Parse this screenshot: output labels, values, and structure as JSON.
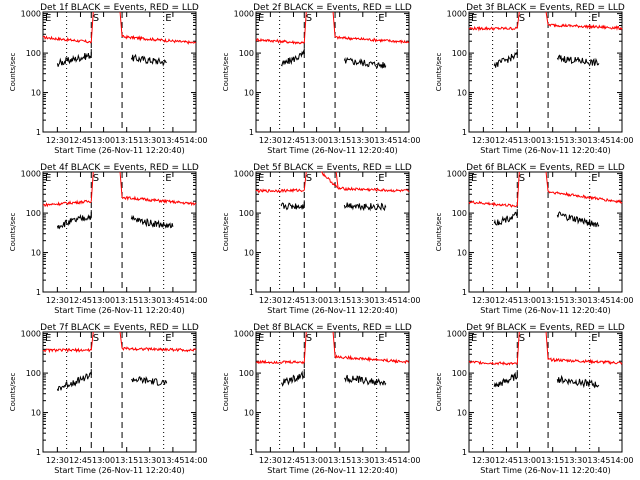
{
  "ylabel": "Counts/sec",
  "xlabel": "Start Time (26-Nov-11 12:20:40)",
  "event_markers": [
    "E",
    "S",
    "E"
  ],
  "x_tick_labels": [
    "12:30",
    "12:45",
    "13:00",
    "13:15",
    "13:30",
    "13:45",
    "14:00"
  ],
  "y_tick_labels": [
    "1",
    "10",
    "100",
    "1000"
  ],
  "colors": {
    "events": "#000000",
    "lld": "#ff0000",
    "axes": "#000000"
  },
  "chart_data": [
    {
      "type": "line",
      "title": "Det 1f BLACK = Events, RED = LLD",
      "xlim": [
        "12:20:40",
        "14:00"
      ],
      "ylim": [
        1,
        1100
      ],
      "yscale": "log",
      "series": [
        {
          "color": "#ff0000",
          "segments": [
            {
              "x": [
                "12:20:40",
                "12:52:00"
              ],
              "y": [
                250,
                190
              ]
            },
            {
              "x": [
                "13:12:00",
                "14:00"
              ],
              "y": [
                260,
                180
              ]
            }
          ]
        },
        {
          "color": "#000000",
          "segments": [
            {
              "x": [
                "12:30:00",
                "12:52:00"
              ],
              "y": [
                55,
                90
              ]
            },
            {
              "x": [
                "13:18:00",
                "13:41:00"
              ],
              "y": [
                75,
                58
              ]
            }
          ]
        }
      ]
    },
    {
      "type": "line",
      "title": "Det 2f BLACK = Events, RED = LLD",
      "xlim": [
        "12:20:40",
        "14:00"
      ],
      "ylim": [
        1,
        1100
      ],
      "yscale": "log",
      "series": [
        {
          "color": "#ff0000",
          "segments": [
            {
              "x": [
                "12:20:40",
                "12:52:00"
              ],
              "y": [
                220,
                180
              ]
            },
            {
              "x": [
                "13:12:00",
                "14:00"
              ],
              "y": [
                250,
                190
              ]
            }
          ]
        },
        {
          "color": "#000000",
          "segments": [
            {
              "x": [
                "12:37:00",
                "12:52:00"
              ],
              "y": [
                50,
                95
              ]
            },
            {
              "x": [
                "13:18:00",
                "13:45:00"
              ],
              "y": [
                65,
                48
              ]
            }
          ]
        }
      ]
    },
    {
      "type": "line",
      "title": "Det 3f BLACK = Events, RED = LLD",
      "xlim": [
        "12:20:40",
        "14:00"
      ],
      "ylim": [
        1,
        1100
      ],
      "yscale": "log",
      "series": [
        {
          "color": "#ff0000",
          "segments": [
            {
              "x": [
                "12:20:40",
                "12:52:00"
              ],
              "y": [
                420,
                420
              ]
            },
            {
              "x": [
                "13:12:00",
                "14:00"
              ],
              "y": [
                520,
                430
              ]
            }
          ]
        },
        {
          "color": "#000000",
          "segments": [
            {
              "x": [
                "12:37:00",
                "12:52:00"
              ],
              "y": [
                48,
                90
              ]
            },
            {
              "x": [
                "13:18:00",
                "13:45:00"
              ],
              "y": [
                75,
                55
              ]
            }
          ]
        }
      ]
    },
    {
      "type": "line",
      "title": "Det 4f BLACK = Events, RED = LLD",
      "xlim": [
        "12:20:40",
        "14:00"
      ],
      "ylim": [
        1,
        1100
      ],
      "yscale": "log",
      "series": [
        {
          "color": "#ff0000",
          "segments": [
            {
              "x": [
                "12:20:40",
                "12:52:00"
              ],
              "y": [
                160,
                200
              ]
            },
            {
              "x": [
                "13:12:00",
                "14:00"
              ],
              "y": [
                250,
                170
              ]
            }
          ]
        },
        {
          "color": "#000000",
          "segments": [
            {
              "x": [
                "12:30:00",
                "12:52:00"
              ],
              "y": [
                48,
                85
              ]
            },
            {
              "x": [
                "13:18:00",
                "13:45:00"
              ],
              "y": [
                70,
                45
              ]
            }
          ]
        }
      ]
    },
    {
      "type": "line",
      "title": "Det 5f BLACK = Events, RED = LLD",
      "xlim": [
        "12:20:40",
        "14:00"
      ],
      "ylim": [
        1,
        1100
      ],
      "yscale": "log",
      "series": [
        {
          "color": "#ff0000",
          "segments": [
            {
              "x": [
                "12:20:40",
                "12:52:00"
              ],
              "y": [
                360,
                380
              ]
            },
            {
              "x": [
                "13:03:00",
                "13:14:00"
              ],
              "y": [
                1100,
                420
              ]
            },
            {
              "x": [
                "13:14:00",
                "14:00"
              ],
              "y": [
                420,
                360
              ]
            }
          ]
        },
        {
          "color": "#000000",
          "segments": [
            {
              "x": [
                "12:37:00",
                "12:52:00"
              ],
              "y": [
                150,
                150
              ]
            },
            {
              "x": [
                "13:18:00",
                "13:45:00"
              ],
              "y": [
                160,
                140
              ]
            }
          ]
        }
      ]
    },
    {
      "type": "line",
      "title": "Det 6f BLACK = Events, RED = LLD",
      "xlim": [
        "12:20:40",
        "14:00"
      ],
      "ylim": [
        1,
        1100
      ],
      "yscale": "log",
      "series": [
        {
          "color": "#ff0000",
          "segments": [
            {
              "x": [
                "12:20:40",
                "12:52:00"
              ],
              "y": [
                190,
                150
              ]
            },
            {
              "x": [
                "13:12:00",
                "14:00"
              ],
              "y": [
                350,
                190
              ]
            }
          ]
        },
        {
          "color": "#000000",
          "segments": [
            {
              "x": [
                "12:37:00",
                "12:52:00"
              ],
              "y": [
                55,
                90
              ]
            },
            {
              "x": [
                "13:18:00",
                "13:45:00"
              ],
              "y": [
                90,
                50
              ]
            }
          ]
        }
      ]
    },
    {
      "type": "line",
      "title": "Det 7f BLACK = Events, RED = LLD",
      "xlim": [
        "12:20:40",
        "14:00"
      ],
      "ylim": [
        1,
        1100
      ],
      "yscale": "log",
      "series": [
        {
          "color": "#ff0000",
          "segments": [
            {
              "x": [
                "12:20:40",
                "12:52:00"
              ],
              "y": [
                380,
                380
              ]
            },
            {
              "x": [
                "13:12:00",
                "14:00"
              ],
              "y": [
                420,
                380
              ]
            }
          ]
        },
        {
          "color": "#000000",
          "segments": [
            {
              "x": [
                "12:30:00",
                "12:52:00"
              ],
              "y": [
                40,
                90
              ]
            },
            {
              "x": [
                "13:18:00",
                "13:41:00"
              ],
              "y": [
                70,
                55
              ]
            }
          ]
        }
      ]
    },
    {
      "type": "line",
      "title": "Det 8f BLACK = Events, RED = LLD",
      "xlim": [
        "12:20:40",
        "14:00"
      ],
      "ylim": [
        1,
        1100
      ],
      "yscale": "log",
      "series": [
        {
          "color": "#ff0000",
          "segments": [
            {
              "x": [
                "12:20:40",
                "12:52:00"
              ],
              "y": [
                190,
                190
              ]
            },
            {
              "x": [
                "13:12:00",
                "14:00"
              ],
              "y": [
                260,
                190
              ]
            }
          ]
        },
        {
          "color": "#000000",
          "segments": [
            {
              "x": [
                "12:37:00",
                "12:52:00"
              ],
              "y": [
                55,
                90
              ]
            },
            {
              "x": [
                "13:18:00",
                "13:45:00"
              ],
              "y": [
                75,
                55
              ]
            }
          ]
        }
      ]
    },
    {
      "type": "line",
      "title": "Det 9f BLACK = Events, RED = LLD",
      "xlim": [
        "12:20:40",
        "14:00"
      ],
      "ylim": [
        1,
        1100
      ],
      "yscale": "log",
      "series": [
        {
          "color": "#ff0000",
          "segments": [
            {
              "x": [
                "12:20:40",
                "12:52:00"
              ],
              "y": [
                190,
                170
              ]
            },
            {
              "x": [
                "13:12:00",
                "14:00"
              ],
              "y": [
                220,
                180
              ]
            }
          ]
        },
        {
          "color": "#000000",
          "segments": [
            {
              "x": [
                "12:37:00",
                "12:52:00"
              ],
              "y": [
                45,
                85
              ]
            },
            {
              "x": [
                "13:18:00",
                "13:45:00"
              ],
              "y": [
                70,
                50
              ]
            }
          ]
        }
      ]
    }
  ]
}
